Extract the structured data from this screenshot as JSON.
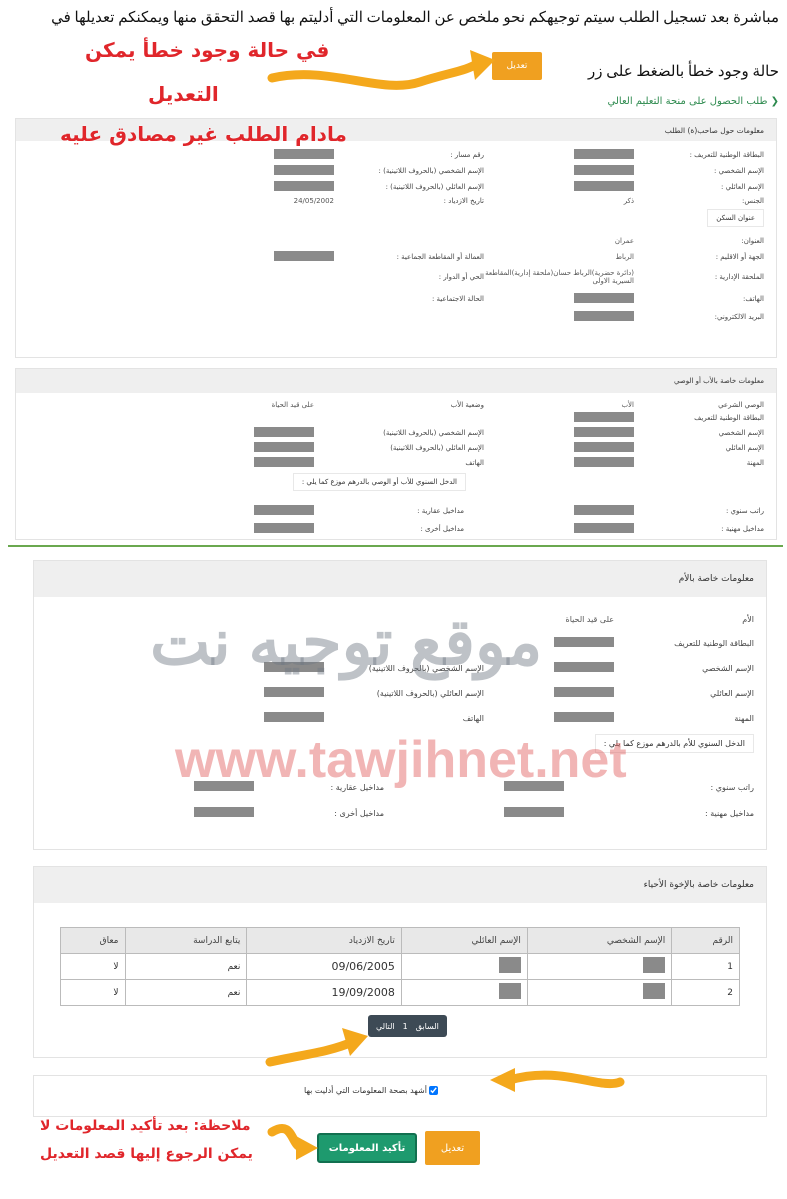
{
  "intro": {
    "line1": "مباشرة بعد تسجيل الطلب سيتم توجيهكم نحو ملخص عن المعلومات التي أدليتم بها قصد التحقق منها ويمكنكم تعديلها في",
    "line2": "حالة وجود خطأ بالضغط على زر",
    "edit_label": "تعديل"
  },
  "annotations": {
    "a1": "في حالة وجود خطأ يمكن",
    "a2": "التعديل",
    "a3": "مادام الطلب غير مصادق عليه",
    "note1": "ملاحظة: بعد تأكيد المعلومات لا",
    "note2": "يمكن الرجوع إليها قصد التعديل"
  },
  "watermark": {
    "url": "www.tawjihnet.net",
    "name": "موقع توجيه نت"
  },
  "breadcrumb": "طلب الحصول على منحة التعليم العالي",
  "applicant": {
    "title": "معلومات حول صاحب(ة) الطلب",
    "fields": [
      [
        "البطاقة الوطنية للتعريف :",
        null,
        "رقم مسار :",
        null
      ],
      [
        "الإسم الشخصي :",
        null,
        "الإسم الشخصي (بالحروف اللاتينية) :",
        null
      ],
      [
        "الإسم العائلي :",
        null,
        "الإسم العائلي (بالحروف اللاتينية) :",
        null
      ],
      [
        "الجنس:",
        "ذكر",
        "تاريخ الازدياد :",
        "24/05/2002"
      ]
    ],
    "address_title": "عنوان السكن",
    "address": [
      [
        "العنوان:",
        "عمران",
        "",
        ""
      ],
      [
        "الجهة أو الاقليم :",
        "الرباط",
        "العمالة أو المقاطعة الجماعية :",
        null
      ],
      [
        "الملحقة الإدارية :",
        "(دائرة حضرية)الرباط حسان(ملحقة إدارية)المقاطعة السيرية الاولى",
        "الحي أو الدوار :",
        ""
      ]
    ],
    "contact": [
      [
        "الهاتف:",
        null,
        "الحالة الاجتماعية :",
        ""
      ],
      [
        "البريد الالكتروني:",
        null,
        "",
        ""
      ]
    ]
  },
  "father": {
    "title": "معلومات خاصة بالأب أو الوصي",
    "fields": [
      [
        "الوصي الشرعي",
        "الأب",
        "وضعية الأب",
        "على قيد الحياة"
      ],
      [
        "البطاقة الوطنية للتعريف",
        null,
        "",
        ""
      ],
      [
        "الإسم الشخصي",
        null,
        "الإسم الشخصي (بالحروف اللاتينية)",
        null
      ],
      [
        "الإسم العائلي",
        null,
        "الإسم العائلي (بالحروف اللاتينية)",
        null
      ],
      [
        "المهنة",
        null,
        "الهاتف",
        null
      ]
    ],
    "income_title": "الدخل السنوي للأب أو الوصي بالدرهم موزع كما يلي :",
    "income": [
      [
        "راتب سنوي :",
        null,
        "مداخيل عقارية :",
        null
      ],
      [
        "مداخيل مهنية :",
        null,
        "مداخيل أخرى :",
        null
      ]
    ]
  },
  "mother": {
    "title": "معلومات خاصة بالأم",
    "fields": [
      [
        "الأم",
        "على قيد الحياة",
        "",
        ""
      ],
      [
        "البطاقة الوطنية للتعريف",
        null,
        "",
        ""
      ],
      [
        "الإسم الشخصي",
        null,
        "الإسم الشخصي (بالحروف اللاتينية)",
        null
      ],
      [
        "الإسم العائلي",
        null,
        "الإسم العائلي (بالحروف اللاتينية)",
        null
      ],
      [
        "المهنة",
        null,
        "الهاتف",
        null
      ]
    ],
    "income_title": "الدخل السنوي للأم بالدرهم موزع كما يلي :",
    "income": [
      [
        "راتب سنوي :",
        null,
        "مداخيل عقارية :",
        null
      ],
      [
        "مداخيل مهنية :",
        null,
        "مداخيل أخرى :",
        null
      ]
    ]
  },
  "siblings": {
    "title": "معلومات خاصة بالإخوة الأحياء",
    "columns": [
      "الرقم",
      "الإسم الشخصي",
      "الإسم العائلي",
      "تاريخ الازدياد",
      "يتابع الدراسة",
      "معاق"
    ],
    "rows": [
      [
        "1",
        null,
        null,
        "09/06/2005",
        "نعم",
        "لا"
      ],
      [
        "2",
        null,
        null,
        "19/09/2008",
        "نعم",
        "لا"
      ]
    ],
    "pager": {
      "prev": "السابق",
      "page": "1",
      "next": "التالي"
    }
  },
  "confirm": {
    "checkbox_label": "أشهد بصحة المعلومات التي أدليت بها",
    "checked": true,
    "confirm_label": "تأكيد المعلومات",
    "edit_label": "تعديل"
  },
  "colors": {
    "accent_orange": "#f0a020",
    "confirm_green": "#1e9a6e",
    "annotation_red": "#e0262b",
    "divider_green": "#6aa84f"
  }
}
